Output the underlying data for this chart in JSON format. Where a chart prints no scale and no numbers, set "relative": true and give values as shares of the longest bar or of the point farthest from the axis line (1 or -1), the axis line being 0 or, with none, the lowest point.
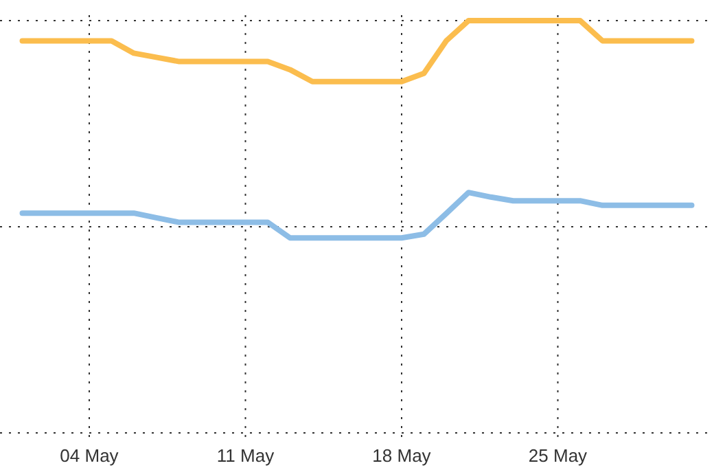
{
  "chart_data": {
    "type": "line",
    "relative": true,
    "grid": true,
    "line_style": "solid",
    "x": [
      "--05-01",
      "--05-02",
      "--05-03",
      "--05-04",
      "--05-05",
      "--05-06",
      "--05-07",
      "--05-08",
      "--05-09",
      "--05-10",
      "--05-11",
      "--05-12",
      "--05-13",
      "--05-14",
      "--05-15",
      "--05-16",
      "--05-17",
      "--05-18",
      "--05-19",
      "--05-20",
      "--05-21",
      "--05-22",
      "--05-23",
      "--05-24",
      "--05-25",
      "--05-26",
      "--05-27",
      "--05-28",
      "--05-29",
      "--05-30",
      "--05-31"
    ],
    "xlim": [
      "--04-30",
      "--06-01"
    ],
    "xticks": [
      {
        "value": "--05-04",
        "label": "04 May"
      },
      {
        "value": "--05-11",
        "label": "11 May"
      },
      {
        "value": "--05-18",
        "label": "18 May"
      },
      {
        "value": "--05-25",
        "label": "25 May"
      }
    ],
    "series": [
      {
        "color": "#fbbd4e",
        "values": [
          0.951,
          0.951,
          0.951,
          0.951,
          0.951,
          0.921,
          0.911,
          0.901,
          0.901,
          0.901,
          0.901,
          0.901,
          0.881,
          0.852,
          0.852,
          0.852,
          0.852,
          0.852,
          0.872,
          0.951,
          1,
          1,
          1,
          1,
          1,
          1,
          0.951,
          0.951,
          0.951,
          0.951,
          0.951
        ]
      },
      {
        "color": "#8dbde6",
        "values": [
          0.533,
          0.533,
          0.533,
          0.533,
          0.533,
          0.533,
          0.522,
          0.511,
          0.511,
          0.511,
          0.511,
          0.511,
          0.473,
          0.473,
          0.473,
          0.473,
          0.473,
          0.473,
          0.482,
          0.532,
          0.583,
          0.572,
          0.563,
          0.563,
          0.563,
          0.563,
          0.552,
          0.552,
          0.552,
          0.552,
          0.552
        ]
      }
    ]
  }
}
